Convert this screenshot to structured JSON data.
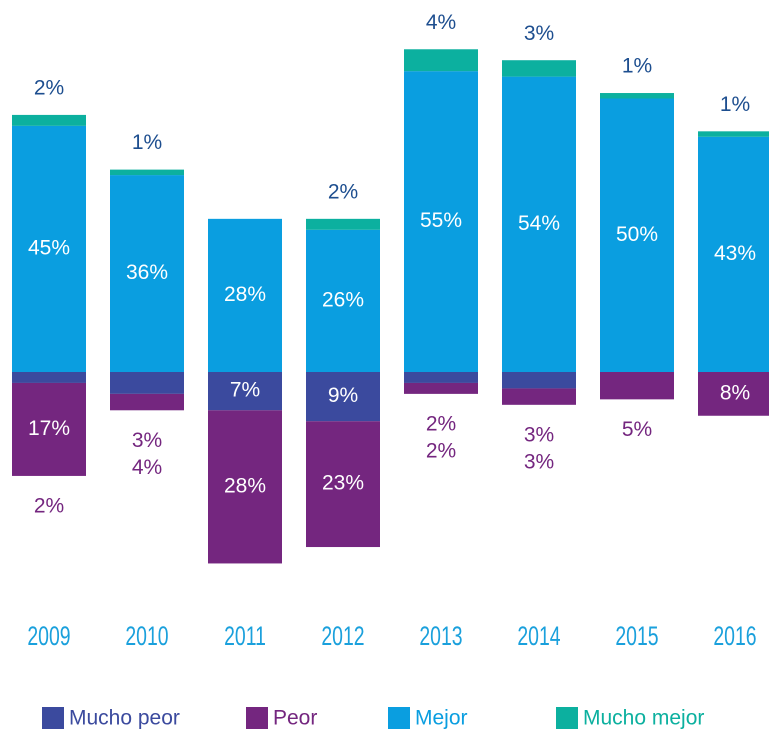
{
  "chart_data": {
    "type": "diverging-stacked-bar",
    "categories": [
      "2009",
      "2010",
      "2011",
      "2012",
      "2013",
      "2014",
      "2015",
      "2016"
    ],
    "series": [
      {
        "name": "Mucho peor",
        "color": "#3b4a9e",
        "side": "below",
        "values": [
          2,
          4,
          7,
          9,
          2,
          3,
          null,
          null
        ],
        "value_labels": [
          "2%",
          "4%",
          "7%",
          "9%",
          "2%",
          "3%",
          null,
          null
        ]
      },
      {
        "name": "Peor",
        "color": "#74267f",
        "side": "below",
        "values": [
          17,
          3,
          28,
          23,
          2,
          3,
          5,
          8
        ],
        "value_labels": [
          "17%",
          "3%",
          "28%",
          "23%",
          "2%",
          "3%",
          "5%",
          "8%"
        ]
      },
      {
        "name": "Mejor",
        "color": "#0a9ee0",
        "side": "above",
        "values": [
          45,
          36,
          28,
          26,
          55,
          54,
          50,
          43
        ],
        "value_labels": [
          "45%",
          "36%",
          "28%",
          "26%",
          "55%",
          "54%",
          "50%",
          "43%"
        ]
      },
      {
        "name": "Mucho mejor",
        "color": "#0cb09f",
        "side": "above",
        "values": [
          2,
          1,
          null,
          2,
          4,
          3,
          1,
          1
        ],
        "value_labels": [
          "2%",
          "1%",
          null,
          "2%",
          "4%",
          "3%",
          "1%",
          "1%"
        ]
      }
    ]
  }
}
